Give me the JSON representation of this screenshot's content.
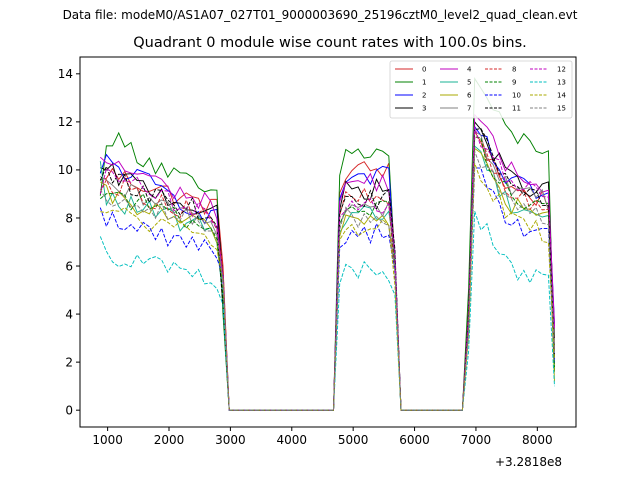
{
  "header": {
    "data_file": "Data file: modeM0/AS1A07_027T01_9000003690_25196cztM0_level2_quad_clean.evt"
  },
  "chart_data": {
    "type": "line",
    "title": "Quadrant 0 module wise count rates with 100.0s bins.",
    "xlabel": "",
    "ylabel": "",
    "x_offset_label": "+3.2818e8",
    "xlim": [
      550,
      8630
    ],
    "ylim": [
      -0.7,
      14.7
    ],
    "xticks": [
      1000,
      2000,
      3000,
      4000,
      5000,
      6000,
      7000,
      8000
    ],
    "xtick_labels": [
      "1000",
      "2000",
      "3000",
      "4000",
      "5000",
      "6000",
      "7000",
      "8000"
    ],
    "yticks": [
      0,
      2,
      4,
      6,
      8,
      10,
      12,
      14
    ],
    "ytick_labels": [
      "0",
      "2",
      "4",
      "6",
      "8",
      "10",
      "12",
      "14"
    ],
    "grid": false,
    "legend_position": "top-right",
    "segments": [
      {
        "start": 880,
        "end": 2880,
        "step": 100
      },
      {
        "start": 4780,
        "end": 5680,
        "step": 100
      },
      {
        "start": 6880,
        "end": 8280,
        "step": 100
      }
    ],
    "series": [
      {
        "name": "0",
        "color": "#d62728",
        "dash": "solid",
        "levels": [
          10.0,
          8.3,
          10.0,
          9.8
        ],
        "edge_low": 6.2,
        "seg_end_low": [
          6.0,
          6.3,
          2.6
        ]
      },
      {
        "name": "1",
        "color": "#008000",
        "dash": "solid",
        "levels": [
          11.6,
          8.6,
          10.7,
          12.0
        ],
        "edge_low": 5.5,
        "seg_end_low": [
          4.0,
          6.0,
          1.6
        ]
      },
      {
        "name": "2",
        "color": "#0000ff",
        "dash": "solid",
        "levels": [
          10.5,
          7.8,
          9.7,
          10.0
        ],
        "edge_low": 6.4,
        "seg_end_low": [
          5.2,
          6.0,
          3.6
        ]
      },
      {
        "name": "3",
        "color": "#000000",
        "dash": "solid",
        "levels": [
          10.0,
          8.0,
          9.2,
          10.2
        ],
        "edge_low": 6.6,
        "seg_end_low": [
          5.5,
          6.4,
          3.0
        ]
      },
      {
        "name": "4",
        "color": "#bf00bf",
        "dash": "solid",
        "levels": [
          10.5,
          8.3,
          9.5,
          10.5
        ],
        "edge_low": 7.0,
        "seg_end_low": [
          5.4,
          6.6,
          3.4
        ]
      },
      {
        "name": "5",
        "color": "#1ab394",
        "dash": "solid",
        "levels": [
          8.9,
          7.3,
          8.2,
          9.2
        ],
        "edge_low": 6.8,
        "seg_end_low": [
          4.7,
          6.4,
          2.6
        ]
      },
      {
        "name": "6",
        "color": "#a9a900",
        "dash": "solid",
        "levels": [
          9.0,
          7.3,
          8.0,
          9.1
        ],
        "edge_low": 5.9,
        "seg_end_low": [
          5.4,
          5.9,
          1.2
        ]
      },
      {
        "name": "7",
        "color": "#808080",
        "dash": "solid",
        "levels": [
          9.4,
          7.6,
          8.5,
          9.8
        ],
        "edge_low": 6.1,
        "seg_end_low": [
          5.3,
          6.0,
          2.4
        ]
      },
      {
        "name": "8",
        "color": "#d62728",
        "dash": "dashed",
        "levels": [
          9.6,
          7.8,
          8.8,
          9.6
        ],
        "edge_low": 6.3,
        "seg_end_low": [
          5.9,
          5.7,
          2.5
        ]
      },
      {
        "name": "9",
        "color": "#008000",
        "dash": "dashed",
        "levels": [
          9.2,
          7.4,
          8.4,
          9.6
        ],
        "edge_low": 6.0,
        "seg_end_low": [
          4.8,
          6.1,
          1.8
        ]
      },
      {
        "name": "10",
        "color": "#0000ff",
        "dash": "dashed",
        "levels": [
          8.0,
          6.6,
          7.4,
          8.3
        ],
        "edge_low": 5.6,
        "seg_end_low": [
          5.6,
          5.8,
          2.0
        ]
      },
      {
        "name": "11",
        "color": "#000000",
        "dash": "dashed",
        "levels": [
          9.8,
          7.9,
          8.8,
          9.9
        ],
        "edge_low": 6.7,
        "seg_end_low": [
          4.3,
          6.7,
          2.2
        ]
      },
      {
        "name": "12",
        "color": "#bf00bf",
        "dash": "dashed",
        "levels": [
          9.9,
          7.8,
          8.6,
          10.0
        ],
        "edge_low": 6.1,
        "seg_end_low": [
          5.5,
          6.4,
          3.5
        ]
      },
      {
        "name": "13",
        "color": "#00bfbf",
        "dash": "dashed",
        "levels": [
          6.6,
          5.3,
          5.8,
          6.5
        ],
        "edge_low": 4.3,
        "seg_end_low": [
          4.4,
          4.8,
          1.0
        ]
      },
      {
        "name": "14",
        "color": "#a9a900",
        "dash": "dashed",
        "levels": [
          8.4,
          6.9,
          7.6,
          8.5
        ],
        "edge_low": 5.3,
        "seg_end_low": [
          5.4,
          5.2,
          2.1
        ]
      },
      {
        "name": "15",
        "color": "#808080",
        "dash": "dashed",
        "levels": [
          9.1,
          7.5,
          8.0,
          9.0
        ],
        "edge_low": 6.2,
        "seg_end_low": [
          5.4,
          5.8,
          2.4
        ]
      }
    ]
  }
}
